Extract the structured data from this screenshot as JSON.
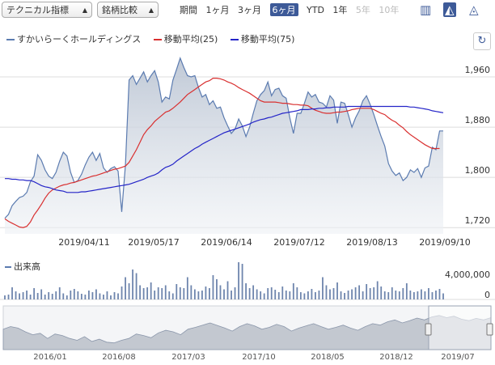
{
  "toolbar": {
    "technical_select": "テクニカル指標",
    "compare_select": "銘柄比較",
    "period_label": "期間",
    "periods": [
      "1ヶ月",
      "3ヶ月",
      "6ヶ月",
      "YTD",
      "1年",
      "5年",
      "10年"
    ],
    "active_period": "6ヶ月",
    "disabled_periods": [
      "5年",
      "10年"
    ],
    "icons": [
      "candlestick-icon",
      "area-chart-icon",
      "mountain-chart-icon"
    ]
  },
  "colors": {
    "price": "#5b7bb0",
    "ma25": "#d93030",
    "ma75": "#2424c8",
    "area": "#b9c3d2",
    "volume": "#6e85ad",
    "accent": "#3d5a98"
  },
  "chart_data": [
    {
      "type": "area",
      "series": [
        {
          "name": "すかいらーくホールディングス",
          "values": [
            1735,
            1741,
            1755,
            1762,
            1768,
            1770,
            1776,
            1793,
            1802,
            1836,
            1827,
            1812,
            1802,
            1798,
            1808,
            1826,
            1840,
            1834,
            1808,
            1792,
            1795,
            1805,
            1820,
            1832,
            1840,
            1827,
            1838,
            1815,
            1808,
            1814,
            1817,
            1810,
            1745,
            1820,
            1955,
            1962,
            1948,
            1958,
            1968,
            1952,
            1962,
            1970,
            1952,
            1920,
            1928,
            1925,
            1955,
            1972,
            1990,
            1975,
            1962,
            1960,
            1962,
            1943,
            1928,
            1932,
            1916,
            1922,
            1910,
            1912,
            1895,
            1882,
            1870,
            1877,
            1893,
            1882,
            1865,
            1880,
            1902,
            1922,
            1932,
            1938,
            1952,
            1930,
            1940,
            1942,
            1930,
            1926,
            1895,
            1870,
            1902,
            1902,
            1918,
            1936,
            1928,
            1932,
            1920,
            1918,
            1912,
            1930,
            1923,
            1886,
            1920,
            1918,
            1900,
            1880,
            1895,
            1906,
            1922,
            1930,
            1916,
            1900,
            1882,
            1865,
            1850,
            1822,
            1810,
            1803,
            1807,
            1795,
            1800,
            1812,
            1808,
            1814,
            1800,
            1815,
            1818,
            1848,
            1844,
            1874,
            1874
          ]
        },
        {
          "name": "移動平均(25)",
          "values": [
            1734,
            1730,
            1727,
            1724,
            1721,
            1720,
            1722,
            1729,
            1740,
            1748,
            1757,
            1767,
            1775,
            1780,
            1783,
            1786,
            1788,
            1789,
            1791,
            1792,
            1794,
            1796,
            1798,
            1800,
            1802,
            1803,
            1805,
            1807,
            1809,
            1811,
            1813,
            1814,
            1816,
            1818,
            1824,
            1834,
            1844,
            1856,
            1868,
            1876,
            1882,
            1889,
            1894,
            1899,
            1904,
            1906,
            1910,
            1915,
            1920,
            1926,
            1932,
            1936,
            1940,
            1944,
            1948,
            1952,
            1954,
            1958,
            1958,
            1957,
            1955,
            1952,
            1950,
            1947,
            1943,
            1940,
            1937,
            1934,
            1930,
            1926,
            1922,
            1920,
            1920,
            1920,
            1920,
            1919,
            1918,
            1918,
            1917,
            1916,
            1916,
            1915,
            1915,
            1914,
            1910,
            1907,
            1905,
            1903,
            1902,
            1902,
            1903,
            1904,
            1904,
            1905,
            1906,
            1908,
            1909,
            1910,
            1910,
            1910,
            1910,
            1908,
            1905,
            1902,
            1900,
            1895,
            1891,
            1888,
            1883,
            1879,
            1873,
            1868,
            1864,
            1860,
            1856,
            1852,
            1849,
            1846,
            1846,
            1846
          ]
        },
        {
          "name": "移動平均(75)",
          "values": [
            1798,
            1798,
            1797,
            1797,
            1796,
            1796,
            1795,
            1795,
            1793,
            1790,
            1787,
            1785,
            1784,
            1782,
            1780,
            1779,
            1778,
            1776,
            1776,
            1776,
            1776,
            1777,
            1777,
            1778,
            1779,
            1780,
            1781,
            1782,
            1783,
            1784,
            1785,
            1786,
            1787,
            1788,
            1789,
            1791,
            1793,
            1795,
            1797,
            1800,
            1802,
            1804,
            1807,
            1812,
            1816,
            1818,
            1821,
            1826,
            1830,
            1834,
            1838,
            1842,
            1846,
            1849,
            1853,
            1856,
            1859,
            1862,
            1865,
            1868,
            1871,
            1873,
            1875,
            1877,
            1879,
            1881,
            1883,
            1885,
            1888,
            1890,
            1892,
            1893,
            1895,
            1896,
            1898,
            1900,
            1902,
            1903,
            1904,
            1905,
            1906,
            1908,
            1908,
            1908,
            1909,
            1909,
            1910,
            1910,
            1911,
            1911,
            1912,
            1912,
            1912,
            1912,
            1913,
            1913,
            1913,
            1913,
            1913,
            1913,
            1913,
            1913,
            1913,
            1913,
            1913,
            1913,
            1913,
            1913,
            1913,
            1913,
            1913,
            1912,
            1912,
            1911,
            1910,
            1909,
            1908,
            1906,
            1905,
            1904,
            1903
          ]
        }
      ],
      "x_labels": [
        "2019/04/11",
        "2019/05/17",
        "2019/06/14",
        "2019/07/12",
        "2019/08/13",
        "2019/09/10"
      ],
      "y_ticks": [
        "1,960",
        "1,880",
        "1,800",
        "1,720"
      ],
      "ylim": [
        1710,
        2000
      ],
      "grid": true,
      "legend": "top-left"
    },
    {
      "type": "bar",
      "title": "出来高",
      "y_ticks": [
        "4,000,000",
        "0"
      ],
      "values": [
        0.1,
        0.12,
        0.3,
        0.2,
        0.15,
        0.18,
        0.22,
        0.12,
        0.28,
        0.16,
        0.25,
        0.12,
        0.18,
        0.14,
        0.2,
        0.3,
        0.15,
        0.1,
        0.22,
        0.26,
        0.2,
        0.14,
        0.12,
        0.22,
        0.18,
        0.25,
        0.15,
        0.12,
        0.2,
        0.1,
        0.18,
        0.15,
        0.32,
        0.55,
        0.4,
        0.74,
        0.65,
        0.35,
        0.28,
        0.3,
        0.42,
        0.22,
        0.3,
        0.28,
        0.35,
        0.2,
        0.15,
        0.38,
        0.3,
        0.28,
        0.55,
        0.35,
        0.25,
        0.2,
        0.22,
        0.32,
        0.28,
        0.6,
        0.5,
        0.35,
        0.25,
        0.45,
        0.22,
        0.3,
        0.92,
        0.88,
        0.4,
        0.28,
        0.35,
        0.25,
        0.2,
        0.15,
        0.28,
        0.3,
        0.24,
        0.18,
        0.32,
        0.22,
        0.2,
        0.4,
        0.3,
        0.18,
        0.15,
        0.2,
        0.26,
        0.18,
        0.22,
        0.55,
        0.35,
        0.25,
        0.28,
        0.42,
        0.2,
        0.16,
        0.22,
        0.25,
        0.3,
        0.35,
        0.2,
        0.38,
        0.28,
        0.3,
        0.45,
        0.32,
        0.2,
        0.18,
        0.3,
        0.22,
        0.2,
        0.28,
        0.4,
        0.22,
        0.18,
        0.2,
        0.25,
        0.2,
        0.28,
        0.18,
        0.22,
        0.26,
        0.15
      ]
    },
    {
      "type": "area",
      "title": "navigator",
      "x_labels": [
        "2016/01",
        "2016/08",
        "2017/03",
        "2017/10",
        "2018/05",
        "2018/12",
        "2019/07"
      ],
      "values": [
        0.55,
        0.62,
        0.58,
        0.48,
        0.4,
        0.44,
        0.3,
        0.42,
        0.38,
        0.3,
        0.25,
        0.35,
        0.22,
        0.28,
        0.2,
        0.18,
        0.25,
        0.3,
        0.42,
        0.38,
        0.32,
        0.45,
        0.52,
        0.48,
        0.4,
        0.55,
        0.6,
        0.66,
        0.72,
        0.65,
        0.58,
        0.5,
        0.62,
        0.7,
        0.64,
        0.55,
        0.6,
        0.68,
        0.62,
        0.5,
        0.58,
        0.64,
        0.7,
        0.62,
        0.55,
        0.6,
        0.66,
        0.58,
        0.52,
        0.62,
        0.7,
        0.66,
        0.75,
        0.8,
        0.72,
        0.78,
        0.85,
        0.8,
        0.88,
        0.92,
        0.86,
        0.9,
        0.82,
        0.78,
        0.84,
        0.8,
        0.86
      ]
    }
  ]
}
